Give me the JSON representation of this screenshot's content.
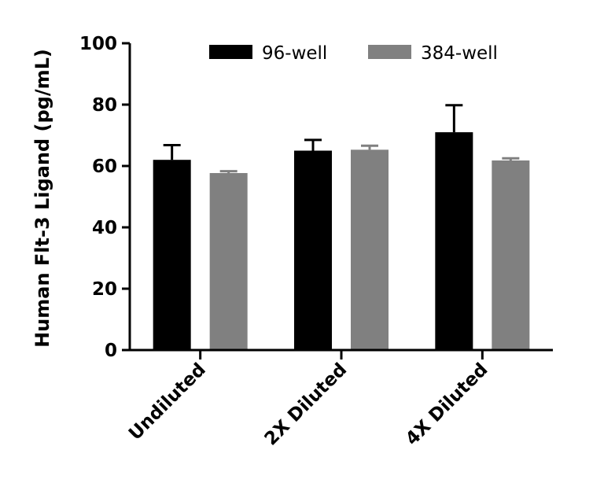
{
  "chart_data": {
    "type": "bar",
    "title": "",
    "xlabel": "",
    "ylabel": "Human Flt-3 Ligand (pg/mL)",
    "ylim": [
      0,
      100
    ],
    "yticks": [
      0,
      20,
      40,
      60,
      80,
      100
    ],
    "categories": [
      "Undiluted",
      "2X Diluted",
      "4X Diluted"
    ],
    "legend_position": "top",
    "series": [
      {
        "name": "96-well",
        "color": "#000000",
        "values": [
          62,
          65,
          71
        ],
        "errors": [
          4.8,
          3.5,
          8.8
        ]
      },
      {
        "name": "384-well",
        "color": "#808080",
        "values": [
          57.7,
          65.3,
          61.8
        ],
        "errors": [
          0.6,
          1.3,
          0.7
        ]
      }
    ]
  }
}
